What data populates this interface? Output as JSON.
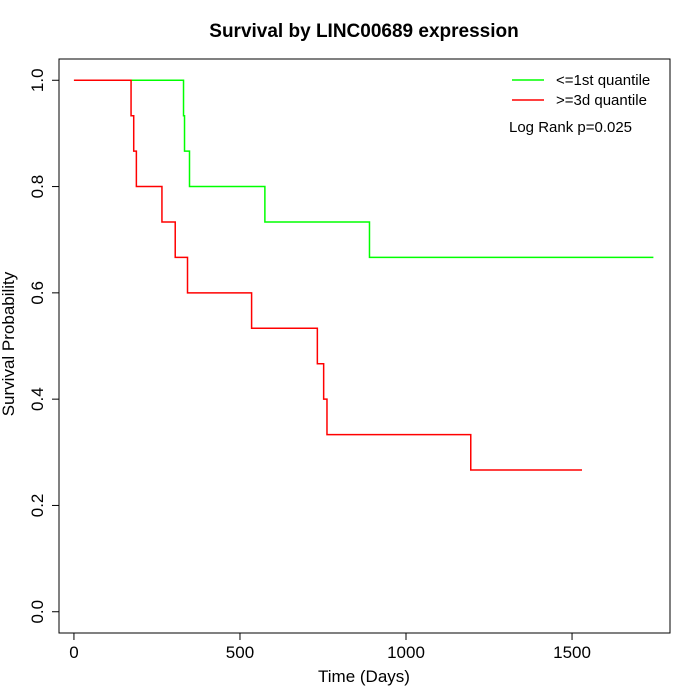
{
  "chart_data": {
    "type": "line",
    "step": true,
    "title": "Survival by LINC00689 expression",
    "xlabel": "Time (Days)",
    "ylabel": "Survival Probability",
    "xlim": [
      -45,
      1795
    ],
    "ylim": [
      -0.04,
      1.04
    ],
    "x_ticks": [
      0,
      500,
      1000,
      1500
    ],
    "y_ticks": [
      0.0,
      0.2,
      0.4,
      0.6,
      0.8,
      1.0
    ],
    "x_tick_labels": [
      "0",
      "500",
      "1000",
      "1500"
    ],
    "y_tick_labels": [
      "0.0",
      "0.2",
      "0.4",
      "0.6",
      "0.8",
      "1.0"
    ],
    "legend_position": "top-right",
    "grid": false,
    "annotation": "Log Rank p=0.025",
    "series": [
      {
        "name": "<=1st quantile",
        "color": "#00ff00",
        "x": [
          0,
          330,
          333,
          348,
          575,
          890,
          1745
        ],
        "y": [
          1.0,
          0.9333,
          0.8667,
          0.8,
          0.7333,
          0.6667,
          0.6667
        ]
      },
      {
        "name": ">=3d quantile",
        "color": "#ff0000",
        "x": [
          0,
          172,
          180,
          188,
          265,
          305,
          342,
          535,
          733,
          752,
          762,
          1195,
          1530
        ],
        "y": [
          1.0,
          0.9333,
          0.8667,
          0.8,
          0.7333,
          0.6667,
          0.6,
          0.5333,
          0.4667,
          0.4,
          0.3333,
          0.2667,
          0.2667
        ]
      }
    ]
  }
}
